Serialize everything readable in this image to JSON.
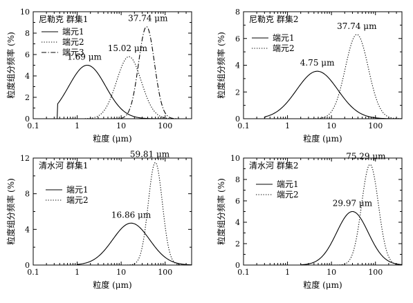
{
  "chart_data": [
    {
      "type": "line",
      "title": "尼勒克 群集1",
      "xlabel": "粒度 (μm)",
      "ylabel": "粒度组分频率 (%)",
      "x_scale": "log",
      "xlim": [
        0.1,
        400
      ],
      "ylim": [
        0,
        10
      ],
      "xticks": [
        0.1,
        1,
        10,
        100
      ],
      "xtick_labels": [
        "0.1",
        "1",
        "10",
        "100"
      ],
      "yticks": [
        0,
        2,
        4,
        6,
        8,
        10
      ],
      "ytick_labels": [
        "0",
        "2",
        "4",
        "6",
        "8",
        "10"
      ],
      "legend_position": "top-left",
      "series": [
        {
          "name": "端元1",
          "style": "solid",
          "peak_x": 1.69,
          "peak_y": 5.0,
          "width": 0.42,
          "x_start": 0.35,
          "x_end": 200,
          "peak_label": "1.69 μm"
        },
        {
          "name": "端元2",
          "style": "dotted",
          "peak_x": 15.02,
          "peak_y": 5.8,
          "width": 0.28,
          "x_start": 1.5,
          "x_end": 200,
          "peak_label": "15.02 μm"
        },
        {
          "name": "端元3",
          "style": "dashdot",
          "peak_x": 37.74,
          "peak_y": 8.6,
          "width": 0.18,
          "x_start": 6,
          "x_end": 200,
          "peak_label": "37.74 μm"
        }
      ]
    },
    {
      "type": "line",
      "title": "尼勒克 群集2",
      "xlabel": "粒度 (μm)",
      "ylabel": "粒度组分频率 (%)",
      "x_scale": "log",
      "xlim": [
        0.1,
        400
      ],
      "ylim": [
        0,
        8
      ],
      "xticks": [
        0.1,
        1,
        10,
        100
      ],
      "xtick_labels": [
        "0.1",
        "1",
        "10",
        "100"
      ],
      "yticks": [
        0,
        2,
        4,
        6,
        8
      ],
      "ytick_labels": [
        "0",
        "2",
        "4",
        "6",
        "8"
      ],
      "legend_position": "top-left",
      "series": [
        {
          "name": "端元1",
          "style": "solid",
          "peak_x": 4.75,
          "peak_y": 3.55,
          "width": 0.47,
          "x_start": 0.3,
          "x_end": 400,
          "peak_label": "4.75 μm"
        },
        {
          "name": "端元2",
          "style": "dotted",
          "peak_x": 37.74,
          "peak_y": 6.3,
          "width": 0.26,
          "x_start": 2,
          "x_end": 400,
          "peak_label": "37.74 μm"
        }
      ]
    },
    {
      "type": "line",
      "title": "清水河 群集1",
      "xlabel": "粒度 (μm)",
      "ylabel": "粒度组分频率 (%)",
      "x_scale": "log",
      "xlim": [
        0.1,
        400
      ],
      "ylim": [
        0,
        12
      ],
      "xticks": [
        0.1,
        1,
        10,
        100
      ],
      "xtick_labels": [
        "0.1",
        "1",
        "10",
        "100"
      ],
      "yticks": [
        0,
        4,
        8,
        12
      ],
      "ytick_labels": [
        "0",
        "4",
        "8",
        "12"
      ],
      "legend_position": "left",
      "series": [
        {
          "name": "端元1",
          "style": "solid",
          "peak_x": 16.86,
          "peak_y": 4.7,
          "width": 0.42,
          "x_start": 1,
          "x_end": 400,
          "peak_label": "16.86 μm"
        },
        {
          "name": "端元2",
          "style": "dotted",
          "peak_x": 59.81,
          "peak_y": 11.5,
          "width": 0.16,
          "x_start": 5,
          "x_end": 400,
          "peak_label": "59.81 μm"
        }
      ]
    },
    {
      "type": "line",
      "title": "清水河 群集2",
      "xlabel": "粒度 (μm)",
      "ylabel": "粒度组分频率 (%)",
      "x_scale": "log",
      "xlim": [
        0.1,
        400
      ],
      "ylim": [
        0,
        10
      ],
      "xticks": [
        0.1,
        1,
        10,
        100
      ],
      "xtick_labels": [
        "0.1",
        "1",
        "10",
        "100"
      ],
      "yticks": [
        0,
        2,
        4,
        6,
        8,
        10
      ],
      "ytick_labels": [
        "0",
        "2",
        "4",
        "6",
        "8",
        "10"
      ],
      "legend_position": "left",
      "series": [
        {
          "name": "端元1",
          "style": "solid",
          "peak_x": 29.97,
          "peak_y": 5.0,
          "width": 0.36,
          "x_start": 2,
          "x_end": 400,
          "peak_label": "29.97 μm"
        },
        {
          "name": "端元2",
          "style": "dotted",
          "peak_x": 75.29,
          "peak_y": 9.4,
          "width": 0.19,
          "x_start": 8,
          "x_end": 400,
          "peak_label": "75.29 μm"
        }
      ]
    }
  ]
}
